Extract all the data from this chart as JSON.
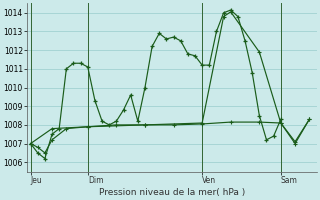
{
  "background_color": "#cceaea",
  "grid_color": "#99cccc",
  "line_color": "#1a5c1a",
  "title": "Pression niveau de la mer( hPa )",
  "ylim": [
    1005.5,
    1014.5
  ],
  "yticks": [
    1006,
    1007,
    1008,
    1009,
    1010,
    1011,
    1012,
    1013,
    1014
  ],
  "day_labels": [
    "Jeu",
    "Dim",
    "Ven",
    "Sam"
  ],
  "series1": {
    "x": [
      0,
      1,
      2,
      3,
      4,
      5,
      6,
      7,
      8,
      9,
      10,
      11,
      12,
      13,
      14,
      15,
      16,
      17,
      18,
      19,
      20,
      21,
      22,
      23,
      24,
      25,
      26,
      27,
      28,
      29,
      30,
      31,
      32,
      33,
      34,
      35
    ],
    "y": [
      1007.0,
      1006.5,
      1006.2,
      1007.5,
      1007.8,
      1011.0,
      1011.3,
      1011.3,
      1011.1,
      1009.3,
      1008.2,
      1008.0,
      1008.2,
      1008.8,
      1009.6,
      1008.2,
      1010.0,
      1012.2,
      1012.9,
      1012.6,
      1012.7,
      1012.5,
      1011.8,
      1011.7,
      1011.2,
      1011.2,
      1013.0,
      1014.0,
      1014.15,
      1013.8,
      1012.5,
      1010.8,
      1008.5,
      1007.2,
      1007.4,
      1008.3
    ]
  },
  "series2": {
    "x": [
      0,
      1,
      2,
      3,
      5,
      8,
      12,
      16,
      20,
      24,
      28,
      32,
      35,
      37,
      39
    ],
    "y": [
      1007.0,
      1006.8,
      1006.5,
      1007.2,
      1007.8,
      1007.9,
      1008.0,
      1008.0,
      1008.0,
      1008.05,
      1008.15,
      1008.15,
      1008.1,
      1007.1,
      1008.3
    ]
  },
  "series3": {
    "x": [
      0,
      3,
      8,
      16,
      24,
      27,
      28,
      32,
      35,
      37,
      39
    ],
    "y": [
      1007.0,
      1007.8,
      1007.9,
      1008.0,
      1008.1,
      1013.8,
      1014.05,
      1011.9,
      1008.1,
      1007.0,
      1008.3
    ]
  },
  "xlim": [
    -0.5,
    40
  ],
  "n_points": 40,
  "jeu_x": 0,
  "dim_x": 8,
  "ven_x": 24,
  "sam_x": 35
}
